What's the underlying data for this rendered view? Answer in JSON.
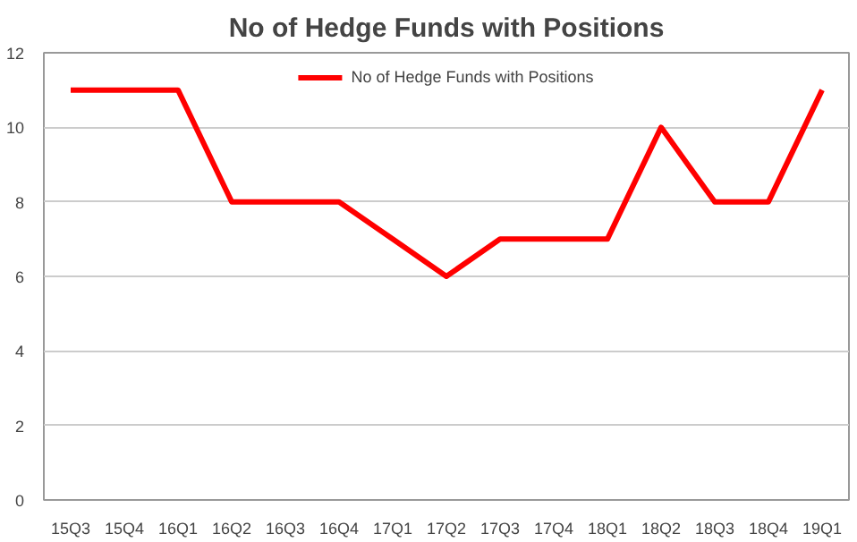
{
  "chart_data": {
    "type": "line",
    "title": "No of Hedge Funds with Positions",
    "categories": [
      "15Q3",
      "15Q4",
      "16Q1",
      "16Q2",
      "16Q3",
      "16Q4",
      "17Q1",
      "17Q2",
      "17Q3",
      "17Q4",
      "18Q1",
      "18Q2",
      "18Q3",
      "18Q4",
      "19Q1"
    ],
    "series": [
      {
        "name": "No of Hedge Funds with Positions",
        "color": "#ff0000",
        "values": [
          11,
          11,
          11,
          8,
          8,
          8,
          7,
          6,
          7,
          7,
          7,
          10,
          8,
          8,
          11
        ]
      }
    ],
    "ylim": [
      0,
      12
    ],
    "yticks": [
      0,
      2,
      4,
      6,
      8,
      10,
      12
    ],
    "grid": "y",
    "legend": "top",
    "marker": "none",
    "line_style": "solid"
  }
}
